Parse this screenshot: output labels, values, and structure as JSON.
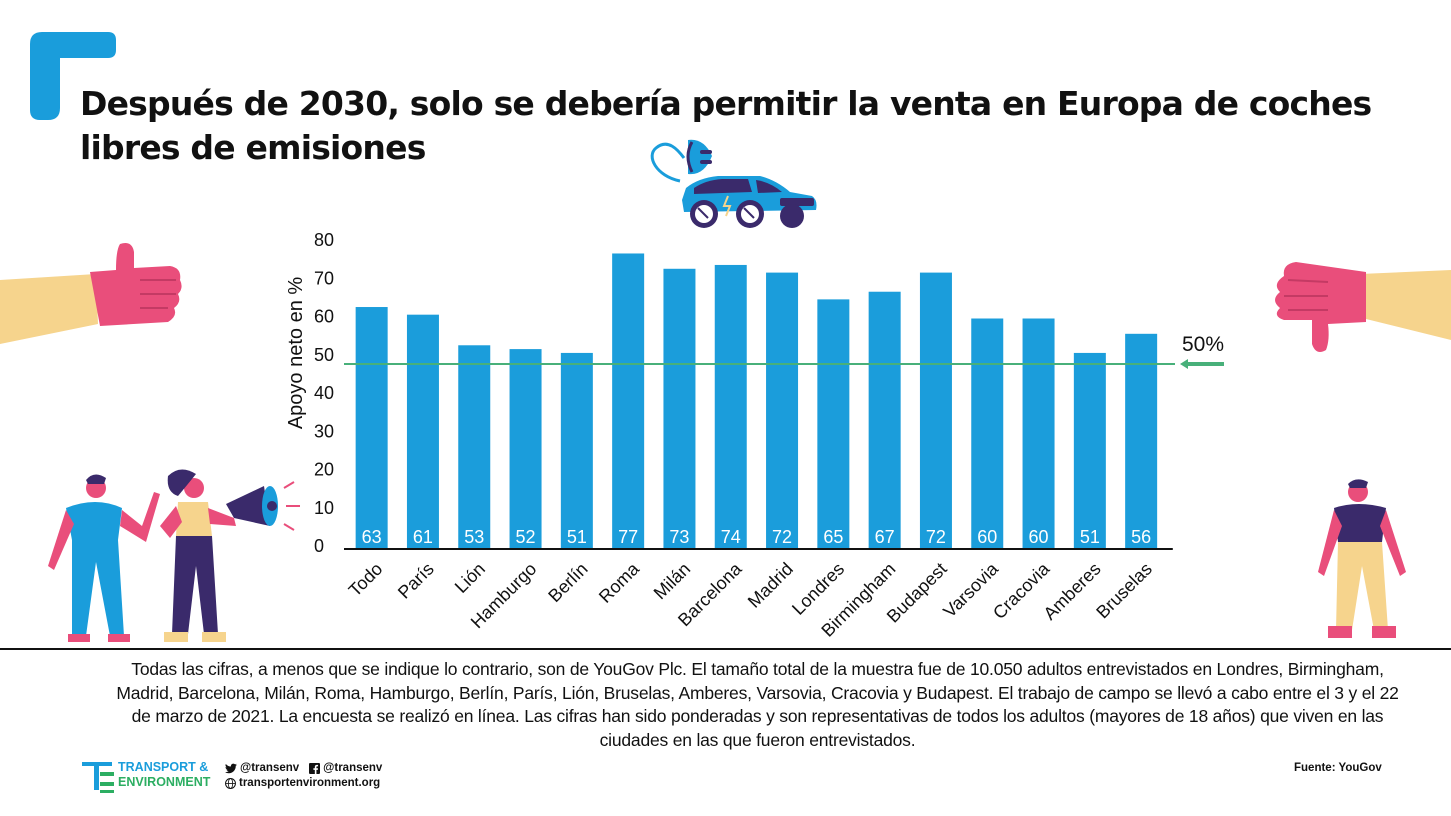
{
  "title": "Después de 2030, solo se debería permitir la venta en Europa de coches libres de emisiones",
  "colors": {
    "bar": "#1b9ddb",
    "threshold": "#48b07a",
    "accent_blue": "#1a9ddb",
    "accent_pink": "#e94e7b",
    "skin": "#f6d48d",
    "navy": "#3a2a6b"
  },
  "chart_data": {
    "type": "bar",
    "categories": [
      "Todo",
      "París",
      "Lión",
      "Hamburgo",
      "Berlín",
      "Roma",
      "Milán",
      "Barcelona",
      "Madrid",
      "Londres",
      "Birmingham",
      "Budapest",
      "Varsovia",
      "Cracovia",
      "Amberes",
      "Bruselas"
    ],
    "values": [
      63,
      61,
      53,
      52,
      51,
      77,
      73,
      74,
      72,
      65,
      67,
      72,
      60,
      60,
      51,
      56
    ],
    "data_labels": [
      "63",
      "61",
      "53",
      "52",
      "51",
      "77",
      "73",
      "74",
      "72",
      "65",
      "67",
      "72",
      "60",
      "60",
      "51",
      "56"
    ],
    "ylabel": "Apoyo neto en %",
    "xlabel": "",
    "yticks": [
      "0",
      "10",
      "20",
      "30",
      "40",
      "50",
      "60",
      "70",
      "80"
    ],
    "ylim": [
      0,
      80
    ],
    "threshold": {
      "value": 50,
      "label": "50%"
    },
    "grid": false,
    "legend": "none"
  },
  "footnote": "Todas las cifras, a menos que se indique lo contrario, son de YouGov Plc. El tamaño total de la muestra fue de 10.050 adultos entrevistados en Londres, Birmingham, Madrid, Barcelona, Milán, Roma, Hamburgo, Berlín, París, Lión, Bruselas, Amberes, Varsovia, Cracovia y Budapest. El trabajo de campo se llevó a cabo entre el 3 y el 22 de marzo de 2021. La encuesta se realizó en línea. Las cifras han sido ponderadas y son representativas de todos los adultos (mayores de 18 años) que viven en las ciudades en las que fueron entrevistados.",
  "brand": {
    "line1": "TRANSPORT &",
    "line2": "ENVIRONMENT"
  },
  "social": {
    "twitter": "@transenv",
    "facebook": "@transenv",
    "website": "transportenvironment.org"
  },
  "source": "Fuente: YouGov",
  "icons": [
    "corner-bracket-icon",
    "electric-car-icon",
    "thumbs-up-icon",
    "thumbs-down-icon",
    "megaphone-icon",
    "twitter-icon",
    "facebook-icon",
    "globe-icon"
  ]
}
